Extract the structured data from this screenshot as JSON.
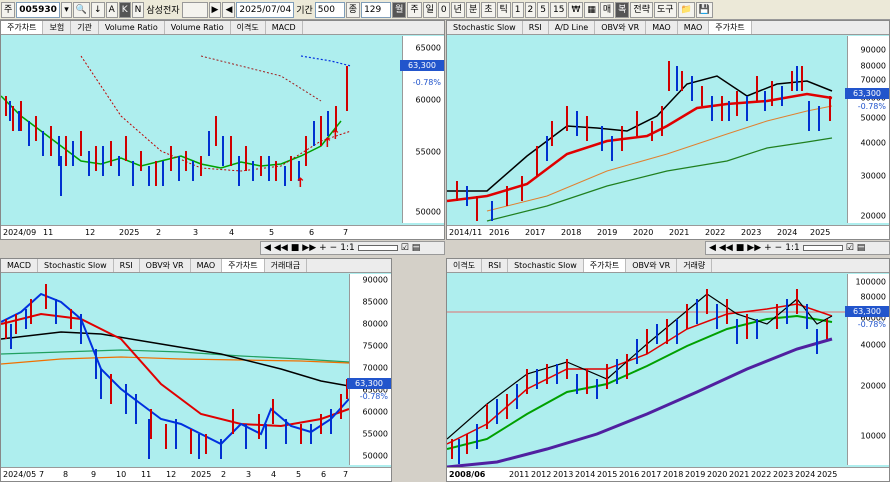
{
  "toolbar": {
    "code_prefix": "주",
    "stock_code": "005930",
    "btn_a": "A",
    "btn_k": "K",
    "btn_n": "N",
    "stock_name": "삼성전자",
    "date": "2025/07/04",
    "period_label": "기간",
    "period_value": "500",
    "qty_label": "종",
    "qty_value": "129",
    "interval_sel": "월",
    "intervals": [
      "주",
      "일",
      "0",
      "년",
      "분",
      "초",
      "틱",
      "1",
      "2",
      "5",
      "15",
      "₩",
      "",
      "매",
      "복",
      "전략",
      "도구"
    ]
  },
  "panel_tl": {
    "tabs": [
      "주가차트",
      "보험",
      "기관",
      "Volume Ratio",
      "Volume Ratio",
      "이격도",
      "MACD"
    ],
    "active_tab": 0,
    "y_ticks": [
      "65000",
      "60000",
      "55000",
      "50000"
    ],
    "price": "63,300",
    "change": "-0.78%",
    "x_ticks": [
      "2024/09",
      "11",
      "12",
      "2025",
      "2",
      "3",
      "4",
      "5",
      "6",
      "7"
    ]
  },
  "panel_tr": {
    "tabs": [
      "Stochastic Slow",
      "RSI",
      "A/D Line",
      "OBV와 VR",
      "MAO",
      "MAO",
      "주가차트"
    ],
    "active_tab": 6,
    "y_ticks": [
      "90000",
      "80000",
      "70000",
      "60000",
      "50000",
      "40000",
      "30000",
      "20000"
    ],
    "price": "63,300",
    "change": "-0.78%",
    "x_ticks": [
      "2014/11",
      "2016",
      "2017",
      "2018",
      "2019",
      "2020",
      "2021",
      "2022",
      "2023",
      "2024",
      "2025"
    ]
  },
  "panel_bl": {
    "tabs": [
      "MACD",
      "Stochastic Slow",
      "RSI",
      "OBV와 VR",
      "MAO",
      "주가차트",
      "거래대금"
    ],
    "active_tab": 5,
    "y_ticks": [
      "90000",
      "85000",
      "80000",
      "75000",
      "70000",
      "65000",
      "60000",
      "55000",
      "50000"
    ],
    "price": "63,300",
    "change": "-0.78%",
    "x_ticks": [
      "2024/05",
      "7",
      "8",
      "9",
      "10",
      "11",
      "12",
      "2025",
      "2",
      "3",
      "4",
      "5",
      "6",
      "7"
    ]
  },
  "panel_br": {
    "tabs": [
      "이격도",
      "RSI",
      "Stochastic Slow",
      "주가차트",
      "OBV와 VR",
      "거래량"
    ],
    "active_tab": 3,
    "y_ticks": [
      "100000",
      "80000",
      "60000",
      "40000",
      "20000",
      "10000"
    ],
    "price": "63,300",
    "change": "-0.78%",
    "x_ticks": [
      "2008/06",
      "2011",
      "2012",
      "2013",
      "2014",
      "2015",
      "2016",
      "2017",
      "2018",
      "2019",
      "2020",
      "2021",
      "2022",
      "2023",
      "2024",
      "2025"
    ]
  },
  "navbar": {
    "ratio_label": "1:1"
  },
  "colors": {
    "bg": "#aeeeee",
    "ma_red": "#e00000",
    "ma_green": "#00a000",
    "ma_black": "#000000",
    "ma_blue": "#0030e0",
    "ma_purple": "#5020a0",
    "ma_orange": "#f07000"
  },
  "chart_data": [
    {
      "type": "line",
      "title": "",
      "price_scale": "linear",
      "ylim": [
        49000,
        66000
      ],
      "series": [
        {
          "name": "",
          "values": [
            61000,
            60000,
            57500,
            57000,
            55000,
            55500,
            54000,
            56000,
            60000,
            58000,
            55000,
            55500,
            56000,
            63300
          ]
        }
      ]
    },
    {
      "type": "line",
      "title": "",
      "price_scale": "log",
      "ylim": [
        18000,
        92000
      ],
      "series": [
        {
          "name": "",
          "values": [
            26000,
            25000,
            27000,
            46000,
            40000,
            52000,
            83000,
            71000,
            57000,
            72000,
            80000,
            56000,
            63300
          ]
        }
      ]
    },
    {
      "type": "line",
      "title": "",
      "price_scale": "linear",
      "ylim": [
        48000,
        92000
      ],
      "series": [
        {
          "name": "",
          "values": [
            79000,
            84000,
            82000,
            76000,
            65000,
            58000,
            55000,
            53000,
            54000,
            58000,
            56000,
            55000,
            57000,
            63300
          ]
        }
      ]
    },
    {
      "type": "line",
      "title": "",
      "price_scale": "log",
      "ylim": [
        7000,
        110000
      ],
      "series": [
        {
          "name": "",
          "values": [
            9000,
            12000,
            16000,
            28000,
            25000,
            22000,
            33000,
            48000,
            44000,
            55000,
            90000,
            70000,
            58000,
            78000,
            63300
          ]
        }
      ]
    }
  ]
}
